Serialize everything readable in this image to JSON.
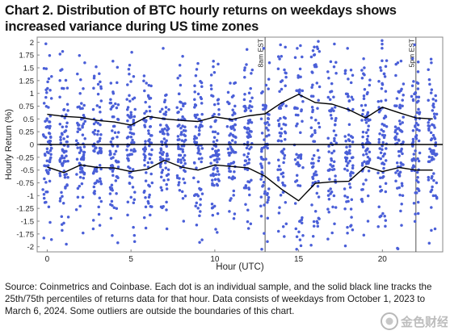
{
  "title": "Chart 2. Distribution of BTC hourly returns on weekdays shows increased variance during US time zones",
  "source_note": "Source: Coinmetrics and Coinbase. Each dot is an individual sample, and the solid black line tracks the 25th/75th percentiles of returns data for that hour. Data consists of weekdays from October 1, 2023 to March 6, 2024. Some outliers are outside the boundaries of this chart.",
  "watermark_text": "金色财经",
  "colors": {
    "dots": "#4a5fd8",
    "percentile_lines": "#000000",
    "zero_line": "#000000",
    "markers": "#555555",
    "frame": "#888888"
  },
  "chart_data": {
    "type": "scatter",
    "xlabel": "Hour (UTC)",
    "ylabel": "Hourly Return (%)",
    "xlim": [
      -0.6,
      23.6
    ],
    "ylim": [
      -2.1,
      2.1
    ],
    "x_ticks": [
      0,
      5,
      10,
      15,
      20
    ],
    "x_tick_labels": [
      "0",
      "5",
      "10",
      "15",
      "20"
    ],
    "y_ticks": [
      -2,
      -1.75,
      -1.5,
      -1.25,
      -1,
      -0.75,
      -0.5,
      -0.25,
      0,
      0.25,
      0.5,
      0.75,
      1,
      1.25,
      1.5,
      1.75,
      2
    ],
    "y_tick_labels": [
      "-2",
      "-1.75",
      "-1.5",
      "-1.25",
      "-1",
      "-0.75",
      "-0.5",
      "-0.25",
      "0",
      "0.25",
      "0.5",
      "0.75",
      "1",
      "1.25",
      "1.5",
      "1.75",
      "2"
    ],
    "grid": false,
    "hours": [
      0,
      1,
      2,
      3,
      4,
      5,
      6,
      7,
      8,
      9,
      10,
      11,
      12,
      13,
      14,
      15,
      16,
      17,
      18,
      19,
      20,
      21,
      22,
      23
    ],
    "p75": [
      0.59,
      0.55,
      0.53,
      0.47,
      0.44,
      0.38,
      0.55,
      0.5,
      0.47,
      0.45,
      0.54,
      0.49,
      0.56,
      0.6,
      0.82,
      0.98,
      0.82,
      0.79,
      0.68,
      0.52,
      0.73,
      0.62,
      0.52,
      0.5
    ],
    "p25": [
      -0.44,
      -0.55,
      -0.4,
      -0.45,
      -0.46,
      -0.53,
      -0.48,
      -0.31,
      -0.44,
      -0.5,
      -0.4,
      -0.43,
      -0.46,
      -0.62,
      -0.88,
      -1.1,
      -0.76,
      -0.73,
      -0.72,
      -0.43,
      -0.53,
      -0.45,
      -0.5,
      -0.5
    ],
    "outliers": [
      {
        "x": 0,
        "values": [
          1.97,
          1.74,
          -1.83,
          1.33
        ]
      },
      {
        "x": 1,
        "values": [
          1.82,
          -1.95,
          1.45,
          -1.42
        ]
      },
      {
        "x": 2,
        "values": [
          1.74,
          -1.73,
          1.38
        ]
      },
      {
        "x": 3,
        "values": [
          1.52,
          -1.58,
          1.3
        ]
      },
      {
        "x": 4,
        "values": [
          1.63,
          -1.25,
          1.2
        ]
      },
      {
        "x": 5,
        "values": [
          1.55,
          -1.62,
          -1.38
        ]
      },
      {
        "x": 6,
        "values": [
          1.2,
          -1.38,
          1.05
        ]
      },
      {
        "x": 7,
        "values": [
          1.88,
          -1.65,
          -1.22
        ]
      },
      {
        "x": 8,
        "values": [
          1.55,
          -1.5,
          1.3
        ]
      },
      {
        "x": 9,
        "values": [
          1.47,
          -1.18,
          1.15
        ]
      },
      {
        "x": 10,
        "values": [
          1.63,
          -1.72,
          1.36
        ]
      },
      {
        "x": 11,
        "values": [
          1.2,
          -1.45,
          1.02
        ]
      },
      {
        "x": 12,
        "values": [
          1.86,
          -1.55,
          1.5
        ]
      },
      {
        "x": 13,
        "values": [
          1.88,
          -1.9,
          -2.05,
          1.6
        ]
      },
      {
        "x": 14,
        "values": [
          1.95,
          -1.8,
          1.72,
          -1.55
        ]
      },
      {
        "x": 15,
        "values": [
          1.88,
          -1.98,
          1.7,
          -1.78
        ]
      },
      {
        "x": 16,
        "values": [
          1.75,
          -1.6,
          1.42
        ]
      },
      {
        "x": 17,
        "values": [
          1.62,
          -1.55,
          1.3
        ]
      },
      {
        "x": 18,
        "values": [
          1.88,
          -1.58,
          1.45
        ]
      },
      {
        "x": 19,
        "values": [
          1.5,
          -1.5,
          1.3
        ]
      },
      {
        "x": 20,
        "values": [
          1.45,
          -1.4,
          -1.22
        ]
      },
      {
        "x": 21,
        "values": [
          1.6,
          -1.58,
          1.35
        ]
      },
      {
        "x": 22,
        "values": [
          1.95,
          -1.35,
          1.68
        ]
      },
      {
        "x": 23,
        "values": [
          1.6,
          -1.65,
          1.27
        ]
      }
    ],
    "markers": [
      {
        "x": 13,
        "label": "8am EST"
      },
      {
        "x": 22,
        "label": "5pm EST"
      }
    ]
  }
}
